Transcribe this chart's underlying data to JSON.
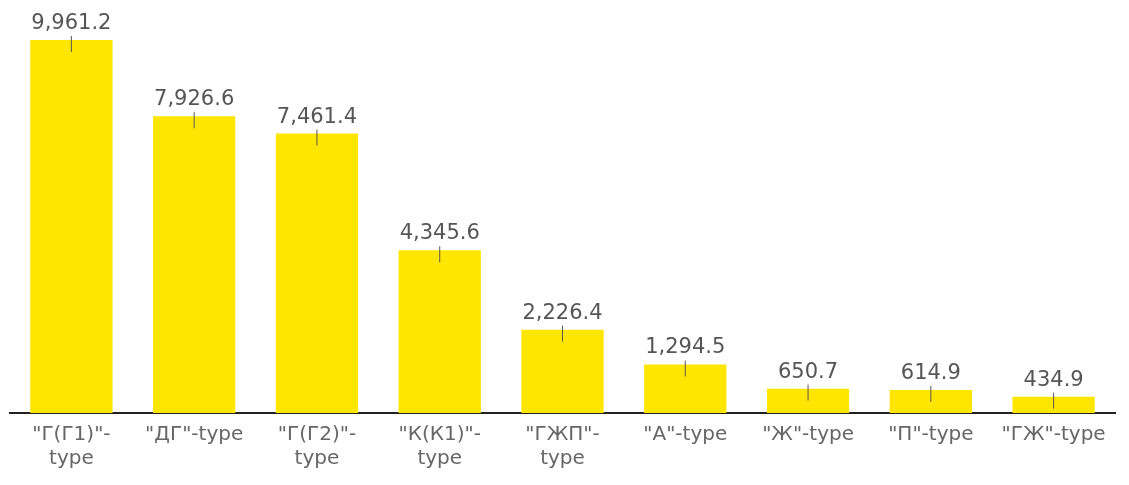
{
  "chart_data": {
    "type": "bar",
    "categories": [
      "\"Г(Г1)\"-type",
      "\"ДГ\"-type",
      "\"Г(Г2)\"-type",
      "\"К(К1)\"-type",
      "\"ГЖП\"-type",
      "\"А\"-type",
      "\"Ж\"-type",
      "\"П\"-type",
      "\"ГЖ\"-type"
    ],
    "values": [
      9961.2,
      7926.6,
      7461.4,
      4345.6,
      2226.4,
      1294.5,
      650.7,
      614.9,
      434.9
    ],
    "value_labels": [
      "9,961.2",
      "7,926.6",
      "7,461.4",
      "4,345.6",
      "2,226.4",
      "1,294.5",
      "650.7",
      "614.9",
      "434.9"
    ],
    "color": "#ffe600"
  }
}
